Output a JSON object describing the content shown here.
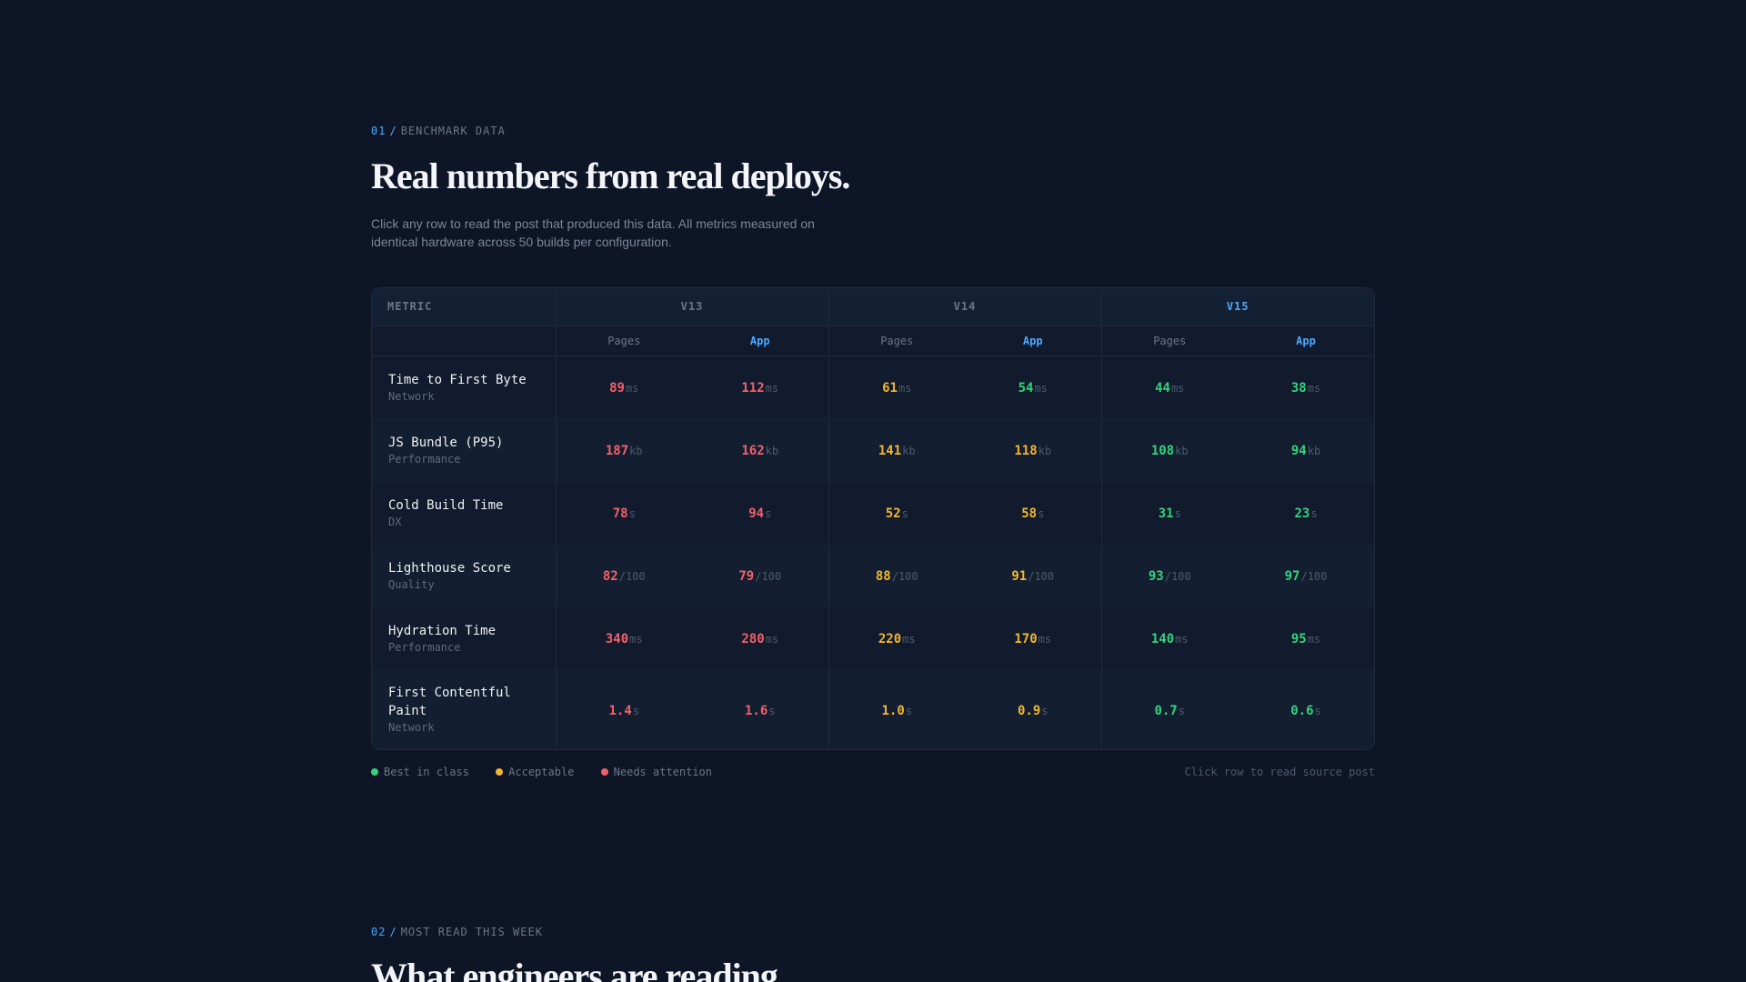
{
  "section1": {
    "number": "01",
    "eyebrow": "BENCHMARK DATA",
    "title": "Real numbers from real deploys.",
    "subtitle": "Click any row to read the post that produced this data. All metrics measured on identical hardware across 50 builds per configuration."
  },
  "table": {
    "metric_header": "METRIC",
    "versions": [
      {
        "label": "V13",
        "active": false
      },
      {
        "label": "V14",
        "active": false
      },
      {
        "label": "V15",
        "active": true
      }
    ],
    "sub_headers": {
      "pages": "Pages",
      "app": "App"
    },
    "rows": [
      {
        "name": "Time to First Byte",
        "category": "Network",
        "unit": "ms",
        "values": [
          "89",
          "112",
          "61",
          "54",
          "44",
          "38"
        ],
        "status": [
          "red",
          "red",
          "amber",
          "green",
          "green",
          "green"
        ]
      },
      {
        "name": "JS Bundle (P95)",
        "category": "Performance",
        "unit": "kb",
        "values": [
          "187",
          "162",
          "141",
          "118",
          "108",
          "94"
        ],
        "status": [
          "red",
          "red",
          "amber",
          "amber",
          "green",
          "green"
        ]
      },
      {
        "name": "Cold Build Time",
        "category": "DX",
        "unit": "s",
        "values": [
          "78",
          "94",
          "52",
          "58",
          "31",
          "23"
        ],
        "status": [
          "red",
          "red",
          "amber",
          "amber",
          "green",
          "green"
        ]
      },
      {
        "name": "Lighthouse Score",
        "category": "Quality",
        "unit": "/100",
        "values": [
          "82",
          "79",
          "88",
          "91",
          "93",
          "97"
        ],
        "status": [
          "red",
          "red",
          "amber",
          "amber",
          "green",
          "green"
        ]
      },
      {
        "name": "Hydration Time",
        "category": "Performance",
        "unit": "ms",
        "values": [
          "340",
          "280",
          "220",
          "170",
          "140",
          "95"
        ],
        "status": [
          "red",
          "red",
          "amber",
          "amber",
          "green",
          "green"
        ]
      },
      {
        "name": "First Contentful Paint",
        "category": "Network",
        "unit": "s",
        "values": [
          "1.4",
          "1.6",
          "1.0",
          "0.9",
          "0.7",
          "0.6"
        ],
        "status": [
          "red",
          "red",
          "amber",
          "amber",
          "green",
          "green"
        ]
      }
    ]
  },
  "legend": {
    "items": [
      {
        "label": "Best in class",
        "color": "#34d27b"
      },
      {
        "label": "Acceptable",
        "color": "#f2b630"
      },
      {
        "label": "Needs attention",
        "color": "#f2616b"
      }
    ],
    "hint": "Click row to read source post"
  },
  "section2": {
    "number": "02",
    "eyebrow": "MOST READ THIS WEEK",
    "title": "What engineers are reading"
  }
}
